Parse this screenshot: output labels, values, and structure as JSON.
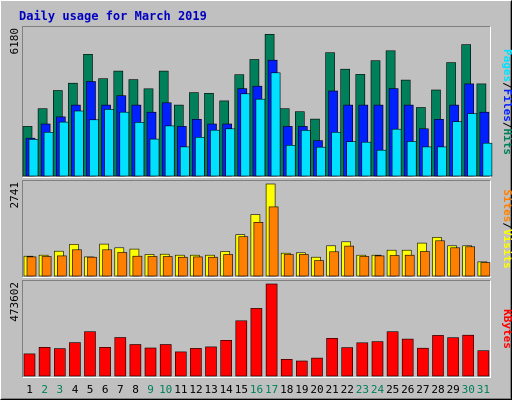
{
  "chart_data": {
    "type": "bar",
    "title": "Daily usage for March 2019",
    "days": [
      "1",
      "2",
      "3",
      "4",
      "5",
      "6",
      "7",
      "8",
      "9",
      "10",
      "11",
      "12",
      "13",
      "14",
      "15",
      "16",
      "17",
      "18",
      "19",
      "20",
      "21",
      "22",
      "23",
      "24",
      "25",
      "26",
      "27",
      "28",
      "29",
      "30",
      "31"
    ],
    "weekend_days": [
      "2",
      "3",
      "9",
      "10",
      "16",
      "17",
      "23",
      "24",
      "30",
      "31"
    ],
    "panels": [
      {
        "id": "traffic",
        "ymax_label": "6180",
        "ymax": 6180,
        "series": [
          {
            "name": "Hits",
            "color": "#00805a",
            "values": [
              2100,
              2850,
              3620,
              3930,
              5150,
              4120,
              4440,
              4080,
              3690,
              4440,
              3000,
              3530,
              3500,
              3180,
              4290,
              4930,
              6000,
              2850,
              2720,
              2410,
              5220,
              4520,
              4300,
              4880,
              5300,
              4060,
              2900,
              3640,
              4800,
              5560,
              3900
            ]
          },
          {
            "name": "Files",
            "color": "#0020ff",
            "values": [
              1600,
              2200,
              2500,
              3000,
              4000,
              3000,
              3400,
              3000,
              2700,
              3100,
              2100,
              2400,
              2200,
              2200,
              3700,
              3800,
              4900,
              2100,
              2100,
              1500,
              3600,
              3000,
              3000,
              3000,
              3700,
              3000,
              2000,
              2400,
              3000,
              3900,
              2700
            ]
          },
          {
            "name": "Pages",
            "color": "#00e0ff",
            "values": [
              1550,
              1850,
              2280,
              2750,
              2380,
              2820,
              2700,
              2270,
              1560,
              2120,
              1230,
              1640,
              1940,
              2000,
              3480,
              3250,
              4370,
              1300,
              1930,
              1220,
              1850,
              1450,
              1430,
              1090,
              1980,
              1460,
              1230,
              1230,
              2300,
              2640,
              1390
            ]
          }
        ]
      },
      {
        "id": "visits",
        "ymax_label": "2741",
        "ymax": 2741,
        "series": [
          {
            "name": "Visits",
            "color": "#ffff00",
            "values": [
              590,
              620,
              740,
              940,
              570,
              950,
              840,
              800,
              640,
              650,
              620,
              620,
              620,
              730,
              1230,
              1830,
              2741,
              680,
              690,
              560,
              900,
              1020,
              620,
              620,
              770,
              770,
              980,
              1150,
              900,
              900,
              420
            ]
          },
          {
            "name": "Sites",
            "color": "#ff8000",
            "values": [
              570,
              580,
              600,
              780,
              560,
              780,
              700,
              590,
              580,
              580,
              560,
              570,
              560,
              640,
              1170,
              1600,
              2060,
              640,
              640,
              460,
              720,
              890,
              580,
              600,
              610,
              620,
              730,
              1050,
              840,
              870,
              400
            ]
          }
        ]
      },
      {
        "id": "kbytes",
        "ymax_label": "473602",
        "ymax": 473602,
        "series": [
          {
            "name": "KBytes",
            "color": "#ff0000",
            "values": [
              114000,
              148000,
              141000,
              172000,
              228000,
              148000,
              198000,
              162000,
              144000,
              162000,
              124000,
              142000,
              150000,
              184000,
              284000,
              348000,
              473602,
              86000,
              77000,
              92000,
              194000,
              146000,
              171000,
              177000,
              228000,
              190000,
              143000,
              209000,
              197000,
              210000,
              130000
            ]
          }
        ]
      }
    ],
    "right_legends": [
      [
        "Pages",
        "/",
        "Files",
        "/",
        "Hits"
      ],
      [
        "Sites",
        "/",
        "Visits"
      ],
      [
        "KBytes"
      ]
    ],
    "colors": {
      "background": "#c0c0c0",
      "title": "#0000c0",
      "slash": "#000000",
      "weekday_label": "#000000",
      "weekend_label": "#00805a"
    }
  }
}
